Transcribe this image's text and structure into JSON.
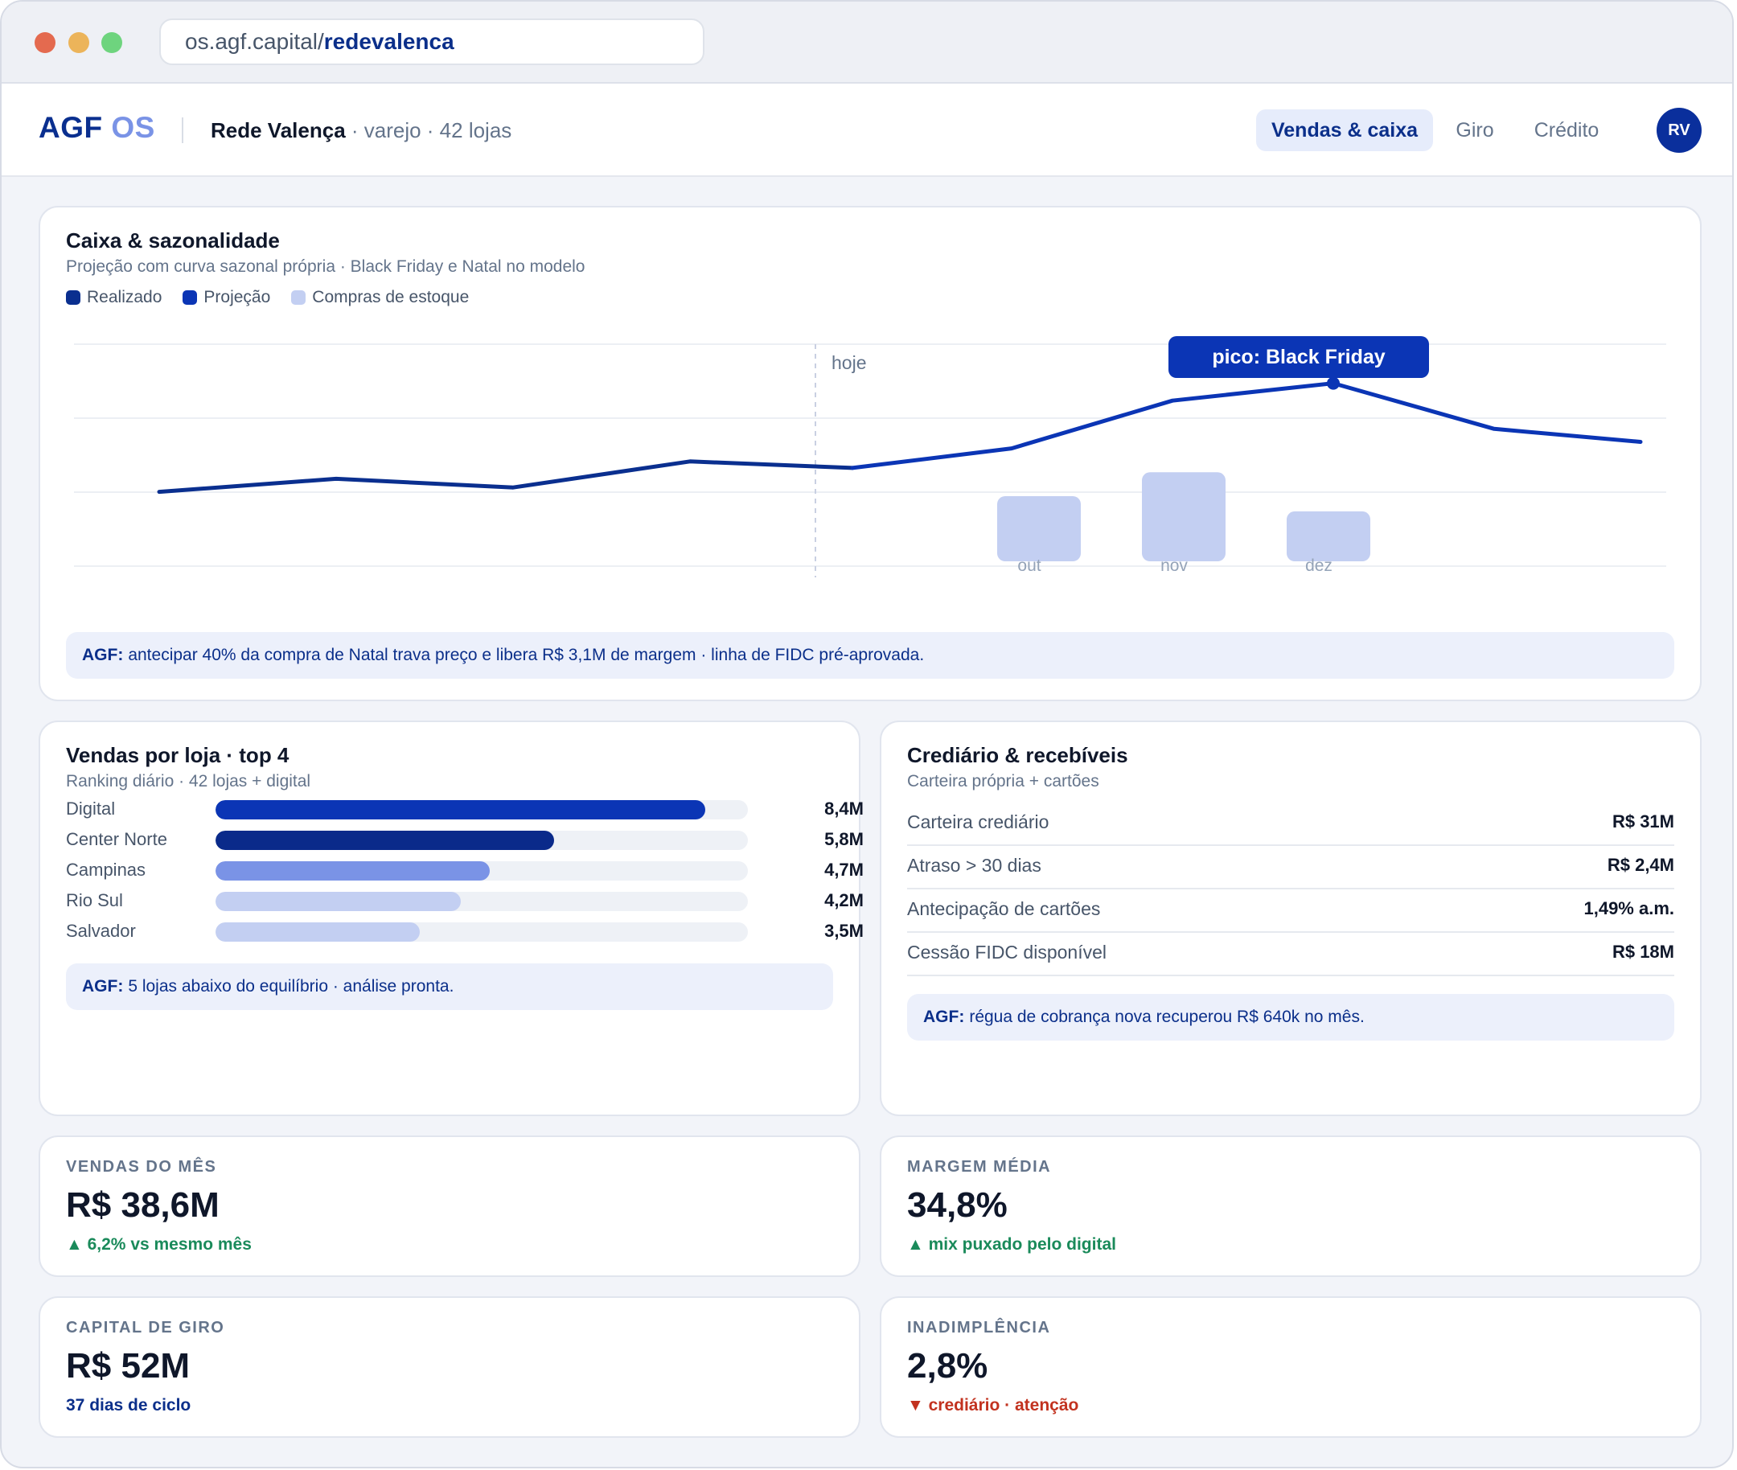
{
  "browser": {
    "url_host": "os.agf.capital/",
    "url_path": "redevalenca"
  },
  "header": {
    "brand_primary": "AGF",
    "brand_secondary": "OS",
    "org_name": "Rede Valença",
    "org_meta": " · varejo · 42 lojas",
    "nav": [
      {
        "label": "Vendas & caixa",
        "active": true
      },
      {
        "label": "Giro",
        "active": false
      },
      {
        "label": "Crédito",
        "active": false
      }
    ],
    "avatar_initials": "RV"
  },
  "cashflow": {
    "title": "Caixa & sazonalidade",
    "subtitle": "Projeção com curva sazonal própria · Black Friday e Natal no modelo",
    "legend": [
      {
        "label": "Realizado",
        "color": "#0a2f8f"
      },
      {
        "label": "Projeção",
        "color": "#0b35b5"
      },
      {
        "label": "Compras de estoque",
        "color": "#c3cff2"
      }
    ],
    "today_label": "hoje",
    "peak_label": "pico: Black Friday",
    "note_prefix": "AGF:",
    "note_text": "antecipar 40% da compra de Natal trava preço e libera R$ 3,1M de margem · linha de FIDC pré-aprovada."
  },
  "chart_data": {
    "type": "line",
    "ylim": [
      0,
      100
    ],
    "grid": true,
    "series": [
      {
        "name": "Realizado",
        "values": [
          32,
          38,
          34,
          46,
          43
        ]
      },
      {
        "name": "Projeção",
        "values": [
          null,
          null,
          null,
          null,
          43,
          52,
          74,
          82,
          61,
          55
        ]
      },
      {
        "name": "Compras de estoque",
        "categories": [
          "out",
          "nov",
          "dez"
        ],
        "values": [
          30,
          41,
          23
        ]
      }
    ],
    "annotations": [
      "hoje",
      "pico: Black Friday"
    ],
    "peak_index": 7,
    "today_index": 4,
    "x_tick_labels": [
      "out",
      "nov",
      "dez"
    ]
  },
  "sales": {
    "title": "Vendas por loja · top 4",
    "subtitle": "Ranking diário · 42 lojas + digital",
    "max": 8.4,
    "items": [
      {
        "label": "Digital",
        "value": 8.4,
        "value_label": "8,4M",
        "color": "#0b35b5"
      },
      {
        "label": "Center Norte",
        "value": 5.8,
        "value_label": "5,8M",
        "color": "#0a2a8a"
      },
      {
        "label": "Campinas",
        "value": 4.7,
        "value_label": "4,7M",
        "color": "#7a93e6"
      },
      {
        "label": "Rio Sul",
        "value": 4.2,
        "value_label": "4,2M",
        "color": "#c3cff2"
      },
      {
        "label": "Salvador",
        "value": 3.5,
        "value_label": "3,5M",
        "color": "#c3cff2"
      }
    ],
    "note_prefix": "AGF:",
    "note_text": "5 lojas abaixo do equilíbrio · análise pronta."
  },
  "credit": {
    "title": "Crediário & recebíveis",
    "subtitle": "Carteira própria + cartões",
    "rows": [
      {
        "label": "Carteira crediário",
        "value": "R$ 31M"
      },
      {
        "label": "Atraso > 30 dias",
        "value": "R$ 2,4M"
      },
      {
        "label": "Antecipação de cartões",
        "value": "1,49% a.m."
      },
      {
        "label": "Cessão FIDC disponível",
        "value": "R$ 18M"
      }
    ],
    "note_prefix": "AGF:",
    "note_text": "régua de cobrança nova recuperou R$ 640k no mês."
  },
  "kpis": [
    {
      "label": "VENDAS DO MÊS",
      "value": "R$ 38,6M",
      "delta": "▲ 6,2% vs mesmo mês",
      "tone": "pos"
    },
    {
      "label": "MARGEM MÉDIA",
      "value": "34,8%",
      "delta": "▲ mix puxado pelo digital",
      "tone": "pos"
    },
    {
      "label": "CAPITAL DE GIRO",
      "value": "R$ 52M",
      "delta": "37 dias de ciclo",
      "tone": "neutral"
    },
    {
      "label": "INADIMPLÊNCIA",
      "value": "2,8%",
      "delta": "▼ crediário · atenção",
      "tone": "neg"
    }
  ]
}
